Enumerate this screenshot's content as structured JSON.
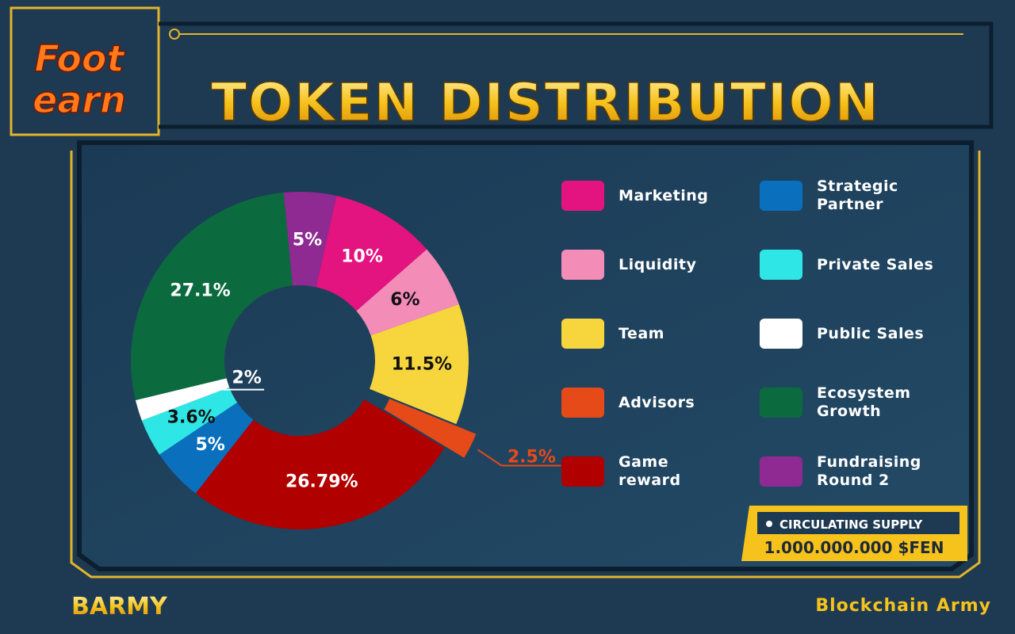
{
  "logo": {
    "line1": "Foot",
    "line2": "earn"
  },
  "footer": {
    "brand": "BARMY",
    "tagline": "Blockchain Army"
  },
  "supply": {
    "label": "CIRCULATING SUPPLY",
    "value": "1.000.000.000 $FEN"
  },
  "chart_data": {
    "type": "donut",
    "title": "TOKEN DISTRIBUTION",
    "categories": [
      "Fundraising Round 2",
      "Marketing",
      "Liquidity",
      "Team",
      "Advisors",
      "Game reward",
      "Strategic Partner",
      "Private Sales",
      "Public Sales",
      "Ecosystem Growth"
    ],
    "values": [
      5,
      10,
      6,
      11.5,
      2.5,
      26.79,
      5,
      3.6,
      2,
      27.1
    ],
    "value_labels": [
      "5%",
      "10%",
      "6%",
      "11.5%",
      "2.5%",
      "26.79%",
      "5%",
      "3.6%",
      "2%",
      "27.1%"
    ],
    "colors": [
      "#8e2a92",
      "#e3137f",
      "#f48cb8",
      "#f6d63c",
      "#e64a19",
      "#b00000",
      "#0a6fbd",
      "#2ee6e6",
      "#ffffff",
      "#0b6b3f"
    ],
    "explode": "Advisors"
  }
}
